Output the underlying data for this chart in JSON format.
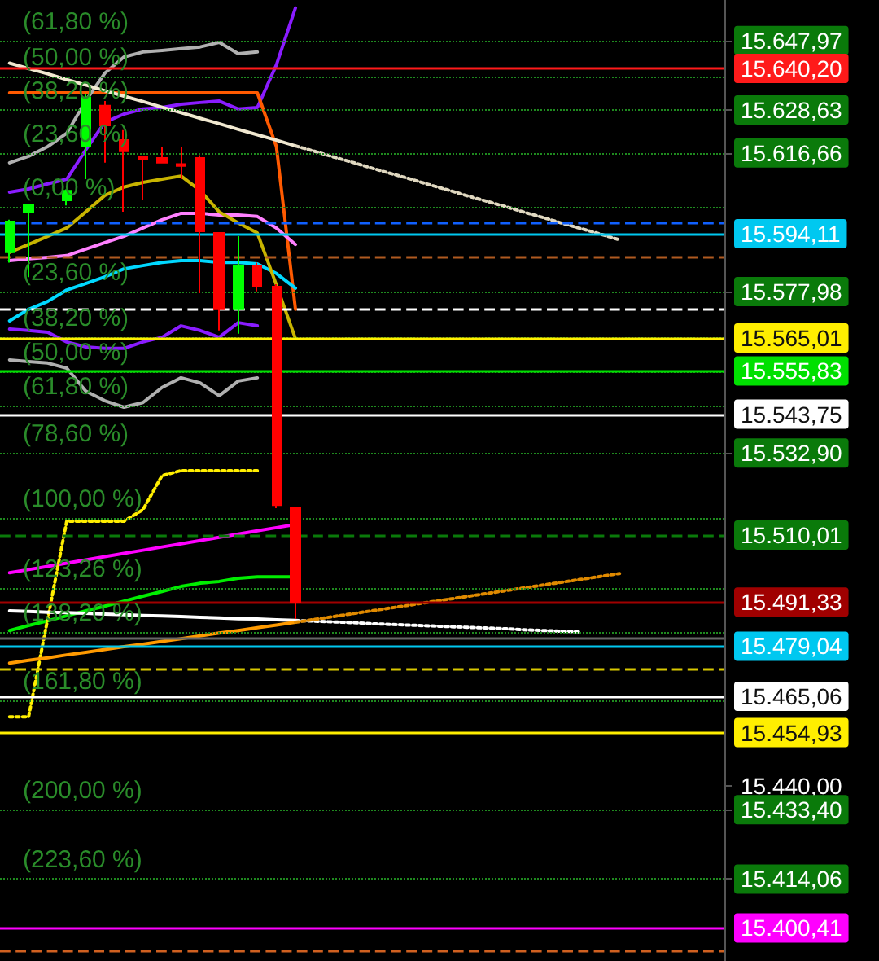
{
  "chart_data": {
    "type": "candlestick",
    "tick_labels": "y",
    "categories": [
      null,
      null,
      null,
      null,
      null,
      null,
      null,
      null,
      null,
      null,
      null,
      null,
      null,
      null,
      null,
      null,
      null,
      null,
      null,
      null,
      null,
      null,
      null,
      null,
      null,
      null,
      null,
      null,
      null,
      null,
      null,
      null,
      null,
      null,
      null,
      null,
      null,
      null
    ],
    "ohlc": [
      [
        15588.9,
        15598.0,
        15586.0,
        15597.5
      ],
      [
        15600.2,
        15602.5,
        15582.0,
        15602.1
      ],
      null,
      [
        15603.4,
        15606.5,
        15602.0,
        15606.1
      ],
      [
        15618.4,
        15633.0,
        15609.3,
        15632.1
      ],
      [
        15629.8,
        15631.1,
        15613.9,
        15624.3
      ],
      [
        15620.2,
        15623.0,
        15600.2,
        15617.1
      ],
      [
        15615.7,
        15615.7,
        15603.4,
        15614.8
      ],
      [
        15615.2,
        15618.4,
        15613.9,
        15613.9
      ],
      [
        15613.5,
        15618.4,
        15609.3,
        15613.0
      ],
      [
        15615.2,
        15616.0,
        15577.5,
        15594.8
      ],
      [
        15594.3,
        15594.3,
        15567.1,
        15573.0
      ],
      [
        15573.0,
        15593.4,
        15566.2,
        15585.2
      ],
      [
        15585.2,
        15586.0,
        15578.0,
        15579.3
      ],
      [
        15579.3,
        15580.0,
        15517.5,
        15518.4
      ],
      [
        15517.5,
        15518.0,
        15486.6,
        15491.33
      ],
      null,
      null,
      null,
      null,
      null,
      null,
      null,
      null,
      null,
      null,
      null,
      null,
      null,
      null,
      null,
      null,
      null,
      null,
      null,
      null,
      null,
      null
    ],
    "colors": [
      "#00ff00",
      "#00ff00",
      null,
      "#00ff00",
      "#00ff00",
      "#ff0000",
      "#ff0000",
      "#ff0000",
      "#ff0000",
      "#ff0000",
      "#ff0000",
      "#ff0000",
      "#00ff00",
      "#ff0000",
      "#ff0000",
      "#ff0000",
      null,
      null,
      null,
      null,
      null,
      null,
      null,
      null,
      null,
      null,
      null,
      null,
      null,
      null,
      null,
      null,
      null,
      null,
      null,
      null,
      null,
      null
    ],
    "series": [
      {
        "type": "line",
        "color": "#8a1cff",
        "line_style": "solid",
        "values": [
          15605.7,
          15606.6,
          15608.0,
          15609.3,
          15617.5,
          15625.2,
          15627.5,
          15628.9,
          15629.3,
          15630.2,
          15630.7,
          15631.1,
          15628.9,
          15629.3,
          15641.2,
          15657.1,
          null,
          null,
          null,
          null,
          null,
          null,
          null,
          null,
          null,
          null,
          null,
          null,
          null,
          null,
          null,
          null,
          null,
          null,
          null,
          null,
          null,
          null
        ]
      },
      {
        "type": "line",
        "color": "#8a1cff",
        "line_style": "solid",
        "values": [
          15567.5,
          15567.1,
          15566.6,
          15563.9,
          15562.5,
          15562.1,
          15562.1,
          15563.9,
          15565.2,
          15568.4,
          15567.1,
          15565.2,
          15569.3,
          15568.4,
          null,
          null,
          null,
          null,
          null,
          null,
          null,
          null,
          null,
          null,
          null,
          null,
          null,
          null,
          null,
          null,
          null,
          null,
          null,
          null,
          null,
          null,
          null,
          null
        ]
      },
      {
        "type": "line",
        "color": "#ff5a00",
        "line_style": "solid",
        "values": [
          15633.4,
          15633.4,
          15633.4,
          15633.4,
          15633.4,
          15633.4,
          15633.4,
          15633.4,
          15633.4,
          15633.4,
          15633.4,
          15633.4,
          15633.4,
          15633.4,
          15618.4,
          15573.0,
          null,
          null,
          null,
          null,
          null,
          null,
          null,
          null,
          null,
          null,
          null,
          null,
          null,
          null,
          null,
          null,
          null,
          null,
          null,
          null,
          null,
          null
        ]
      },
      {
        "type": "line",
        "color": "#00d8ff",
        "line_style": "solid",
        "values": [
          15569.8,
          15573.0,
          15575.2,
          15578.4,
          15580.2,
          15582.1,
          15584.3,
          15585.2,
          15586.1,
          15586.6,
          15586.6,
          15586.1,
          15586.1,
          15585.7,
          15583.0,
          15578.9,
          null,
          null,
          null,
          null,
          null,
          null,
          null,
          null,
          null,
          null,
          null,
          null,
          null,
          null,
          null,
          null,
          null,
          null,
          null,
          null,
          null,
          null
        ]
      },
      {
        "type": "line",
        "color": "#ff80ff",
        "line_style": "solid",
        "values": [
          15586.6,
          15587.1,
          15587.5,
          15588.0,
          15589.8,
          15591.6,
          15593.4,
          15595.7,
          15598.0,
          15599.8,
          15599.8,
          15599.3,
          15599.3,
          15598.9,
          15595.7,
          15591.1,
          null,
          null,
          null,
          null,
          null,
          null,
          null,
          null,
          null,
          null,
          null,
          null,
          null,
          null,
          null,
          null,
          null,
          null,
          null,
          null,
          null,
          null
        ]
      },
      {
        "type": "line",
        "color": "#b0b0b0",
        "line_style": "solid",
        "values": [
          15613.9,
          15615.7,
          15618.4,
          15622.1,
          15631.2,
          15638.9,
          15643.4,
          15644.8,
          15645.2,
          15645.7,
          15646.2,
          15647.5,
          15644.3,
          15644.8,
          null,
          null,
          null,
          null,
          null,
          null,
          null,
          null,
          null,
          null,
          null,
          null,
          null,
          null,
          null,
          null,
          null,
          null,
          null,
          null,
          null,
          null,
          null,
          null
        ]
      },
      {
        "type": "line",
        "color": "#b0b0b0",
        "line_style": "solid",
        "values": [
          15558.9,
          15558.4,
          15558.0,
          15556.6,
          15550.2,
          15547.5,
          15545.7,
          15547.0,
          15551.2,
          15553.9,
          15552.5,
          15548.9,
          15553.0,
          15553.9,
          null,
          null,
          null,
          null,
          null,
          null,
          null,
          null,
          null,
          null,
          null,
          null,
          null,
          null,
          null,
          null,
          null,
          null,
          null,
          null,
          null,
          null,
          null,
          null
        ]
      },
      {
        "type": "line",
        "color": "#c8b400",
        "line_style": "solid",
        "values": [
          15588.9,
          15591.1,
          15593.4,
          15595.7,
          15600.2,
          15604.8,
          15607.1,
          15608.4,
          15609.3,
          15610.2,
          15606.1,
          15600.2,
          15597.1,
          15594.3,
          15579.8,
          15564.8,
          null,
          null,
          null,
          null,
          null,
          null,
          null,
          null,
          null,
          null,
          null,
          null,
          null,
          null,
          null,
          null,
          null,
          null,
          null,
          null,
          null,
          null
        ]
      },
      {
        "type": "line",
        "color": "#00ee00",
        "line_style": "solid",
        "values": [
          15483.4,
          15484.8,
          15486.1,
          15487.5,
          15488.9,
          15490.2,
          15491.6,
          15493.0,
          15494.3,
          15495.7,
          15496.6,
          15497.1,
          15498.0,
          15498.4,
          15498.4,
          15498.4,
          null,
          null,
          null,
          null,
          null,
          null,
          null,
          null,
          null,
          null,
          null,
          null,
          null,
          null,
          null,
          null,
          null,
          null,
          null,
          null,
          null,
          null
        ]
      },
      {
        "type": "line",
        "color": "#ff00ff",
        "line_style": "solid",
        "values": [
          15499.5,
          15500.4,
          15501.3,
          15502.2,
          15503.1,
          15504.0,
          15504.9,
          15505.8,
          15506.7,
          15507.6,
          15508.5,
          15509.4,
          15510.3,
          15511.2,
          15512.1,
          15513.0,
          null,
          null,
          null,
          null,
          null,
          null,
          null,
          null,
          null,
          null,
          null,
          null,
          null,
          null,
          null,
          null,
          null,
          null,
          null,
          null,
          null,
          null
        ]
      },
      {
        "type": "line",
        "color": "#ffee00",
        "line_style": "dotted",
        "values": [
          15459.3,
          15459.3,
          15486.6,
          15513.9,
          15513.9,
          15513.9,
          15513.9,
          15517.1,
          15526.6,
          15528.0,
          15528.0,
          15528.0,
          15528.0,
          15528.0,
          null,
          null,
          null,
          null,
          null,
          null,
          null,
          null,
          null,
          null,
          null,
          null,
          null,
          null,
          null,
          null,
          null,
          null,
          null,
          null,
          null,
          null,
          null,
          null
        ]
      },
      {
        "type": "line",
        "color": "#f0e8d0",
        "line_style": "solid",
        "values": [
          15641.7,
          15640.2,
          15638.7,
          15637.1,
          15635.6,
          15634.0,
          15632.5,
          15631.0,
          15629.4,
          15627.9,
          15626.3,
          15624.8,
          15623.2,
          15621.7,
          15620.2,
          15618.6,
          null,
          null,
          null,
          null,
          null,
          null,
          null,
          null,
          null,
          null,
          null,
          null,
          null,
          null,
          null,
          null,
          null,
          null,
          null,
          null,
          null,
          null
        ]
      },
      {
        "type": "line",
        "color": "#e0d8c0",
        "line_style": "dotted",
        "values": [
          null,
          null,
          null,
          null,
          null,
          null,
          null,
          null,
          null,
          null,
          null,
          null,
          null,
          null,
          null,
          15618.6,
          15617.1,
          15615.5,
          15614.0,
          15612.4,
          15610.9,
          15609.4,
          15607.8,
          15606.3,
          15604.7,
          15603.2,
          15601.7,
          15600.1,
          15598.6,
          15597.0,
          15595.5,
          15594.0,
          15592.4,
          null,
          null,
          null,
          null,
          null
        ]
      },
      {
        "type": "line",
        "color": "#ffffff",
        "line_style": "solid",
        "values": [
          15488.9,
          15488.7,
          15488.5,
          15488.4,
          15488.2,
          15488.0,
          15487.8,
          15487.6,
          15487.5,
          15487.3,
          15487.1,
          15486.9,
          15486.7,
          15486.6,
          15486.4,
          15486.2,
          null,
          null,
          null,
          null,
          null,
          null,
          null,
          null,
          null,
          null,
          null,
          null,
          null,
          null,
          null,
          null,
          null,
          null,
          null,
          null,
          null,
          null
        ]
      },
      {
        "type": "line",
        "color": "#ffffff",
        "line_style": "dotted",
        "values": [
          null,
          null,
          null,
          null,
          null,
          null,
          null,
          null,
          null,
          null,
          null,
          null,
          null,
          null,
          null,
          15486.2,
          15486.0,
          15485.8,
          15485.6,
          15485.3,
          15485.1,
          15484.9,
          15484.7,
          15484.5,
          15484.3,
          15484.1,
          15483.9,
          15483.6,
          15483.4,
          15483.2,
          15483.0,
          null,
          null,
          null,
          null,
          null,
          null,
          null
        ]
      },
      {
        "type": "line",
        "color": "#ff9a00",
        "line_style": "solid",
        "values": [
          15474.3,
          15475.1,
          15475.8,
          15476.6,
          15477.3,
          15478.1,
          15478.9,
          15479.6,
          15480.4,
          15481.1,
          15481.9,
          15482.7,
          15483.4,
          15484.2,
          15484.9,
          15485.7,
          null,
          null,
          null,
          null,
          null,
          null,
          null,
          null,
          null,
          null,
          null,
          null,
          null,
          null,
          null,
          null,
          null,
          null,
          null,
          null,
          null,
          null
        ]
      },
      {
        "type": "line",
        "color": "#e08a00",
        "line_style": "dotted",
        "values": [
          null,
          null,
          null,
          null,
          null,
          null,
          null,
          null,
          null,
          null,
          null,
          null,
          null,
          null,
          null,
          15485.7,
          15486.5,
          15487.3,
          15488.1,
          15488.9,
          15489.7,
          15490.5,
          15491.3,
          15492.1,
          15492.9,
          15493.7,
          15494.5,
          15495.3,
          15496.1,
          15496.9,
          15497.7,
          15498.5,
          15499.3,
          null,
          null,
          null,
          null,
          null
        ]
      }
    ],
    "ylim": [
      15391.2,
      15659.3
    ],
    "yticks": [
      {
        "value": 15647.97,
        "label": "15.647,97"
      },
      {
        "value": 15628.63,
        "label": "15.628,63"
      },
      {
        "value": 15616.66,
        "label": "15.616,66"
      },
      {
        "value": 15577.98,
        "label": "15.577,98"
      },
      {
        "value": 15532.9,
        "label": "15.532,90"
      },
      {
        "value": 15440.0,
        "label": "15.440,00"
      },
      {
        "value": 15433.4,
        "label": "15.433,40"
      },
      {
        "value": 15414.06,
        "label": "15.414,06"
      }
    ],
    "ref_lines": [
      {
        "axis": "y",
        "value": 15647.97,
        "color": "#1f8a1f",
        "line_style": "dotted"
      },
      {
        "axis": "y",
        "value": 15637.97,
        "color": "#1f8a1f",
        "line_style": "dotted"
      },
      {
        "axis": "y",
        "value": 15628.63,
        "color": "#1f8a1f",
        "line_style": "dotted"
      },
      {
        "axis": "y",
        "value": 15616.66,
        "color": "#1f8a1f",
        "line_style": "dotted"
      },
      {
        "axis": "y",
        "value": 15601.5,
        "color": "#1f8a1f",
        "line_style": "dotted"
      },
      {
        "axis": "y",
        "value": 15577.98,
        "color": "#1f8a1f",
        "line_style": "dotted"
      },
      {
        "axis": "y",
        "value": 15565.2,
        "color": "#1f8a1f",
        "line_style": "dotted"
      },
      {
        "axis": "y",
        "value": 15555.7,
        "color": "#1f8a1f",
        "line_style": "dotted"
      },
      {
        "axis": "y",
        "value": 15546.2,
        "color": "#1f8a1f",
        "line_style": "dotted"
      },
      {
        "axis": "y",
        "value": 15532.9,
        "color": "#1f8a1f",
        "line_style": "dotted"
      },
      {
        "axis": "y",
        "value": 15514.8,
        "color": "#1f8a1f",
        "line_style": "dotted"
      },
      {
        "axis": "y",
        "value": 15495.2,
        "color": "#1f8a1f",
        "line_style": "dotted"
      },
      {
        "axis": "y",
        "value": 15483.0,
        "color": "#1f8a1f",
        "line_style": "dotted"
      },
      {
        "axis": "y",
        "value": 15463.9,
        "color": "#1f8a1f",
        "line_style": "dotted"
      },
      {
        "axis": "y",
        "value": 15433.4,
        "color": "#1f8a1f",
        "line_style": "dotted"
      },
      {
        "axis": "y",
        "value": 15414.06,
        "color": "#1f8a1f",
        "line_style": "dotted"
      },
      {
        "axis": "y",
        "value": 15640.2,
        "label": "15.640,20",
        "color": "#ff1a1a",
        "line_style": "solid"
      },
      {
        "axis": "y",
        "value": 15597.0,
        "color": "#1060ff",
        "line_style": "dashed"
      },
      {
        "axis": "y",
        "value": 15594.11,
        "label": "15.594,11",
        "color": "#00c8f0",
        "line_style": "solid"
      },
      {
        "axis": "y",
        "value": 15587.5,
        "color": "#b05a20",
        "line_style": "dashed"
      },
      {
        "axis": "y",
        "value": 15573.0,
        "color": "#ffffff",
        "line_style": "dashed"
      },
      {
        "axis": "y",
        "value": 15565.01,
        "label": "15.565,01",
        "color": "#ffee00",
        "line_style": "solid"
      },
      {
        "axis": "y",
        "value": 15555.83,
        "label": "15.555,83",
        "color": "#00e000",
        "line_style": "solid"
      },
      {
        "axis": "y",
        "value": 15543.75,
        "label": "15.543,75",
        "color": "#ffffff",
        "line_style": "solid"
      },
      {
        "axis": "y",
        "value": 15510.01,
        "label": "15.510,01",
        "color": "#0a7a0a",
        "line_style": "dashed"
      },
      {
        "axis": "y",
        "value": 15491.33,
        "label": "15.491,33",
        "color": "#a00000",
        "line_style": "solid"
      },
      {
        "axis": "y",
        "value": 15481.2,
        "color": "#666666",
        "line_style": "solid"
      },
      {
        "axis": "y",
        "value": 15479.04,
        "label": "15.479,04",
        "color": "#00c8f0",
        "line_style": "solid"
      },
      {
        "axis": "y",
        "value": 15472.5,
        "color": "#d8c800",
        "line_style": "dashed"
      },
      {
        "axis": "y",
        "value": 15465.06,
        "label": "15.465,06",
        "color": "#ffffff",
        "line_style": "solid"
      },
      {
        "axis": "y",
        "value": 15454.93,
        "label": "15.454,93",
        "color": "#ffee00",
        "line_style": "solid"
      },
      {
        "axis": "y",
        "value": 15400.41,
        "label": "15.400,41",
        "color": "#ff00ff",
        "line_style": "solid"
      },
      {
        "axis": "y",
        "value": 15393.9,
        "color": "#d06020",
        "line_style": "dashed"
      }
    ],
    "annotations": [
      {
        "text": "(61,80 %)",
        "y": 15647.97
      },
      {
        "text": "(50,00 %)",
        "y": 15637.97
      },
      {
        "text": "(38,20 %)",
        "y": 15628.63
      },
      {
        "text": "(23,60 %)",
        "y": 15616.66
      },
      {
        "text": "(0,00 %)",
        "y": 15601.5
      },
      {
        "text": "(23,60 %)",
        "y": 15577.98
      },
      {
        "text": "(38,20 %)",
        "y": 15565.2
      },
      {
        "text": "(50,00 %)",
        "y": 15555.7
      },
      {
        "text": "(61,80 %)",
        "y": 15546.2
      },
      {
        "text": "(78,60 %)",
        "y": 15532.9
      },
      {
        "text": "(100,00 %)",
        "y": 15514.8
      },
      {
        "text": "(123,26 %)",
        "y": 15495.2
      },
      {
        "text": "(138,20 %)",
        "y": 15483.0
      },
      {
        "text": "(161,80 %)",
        "y": 15463.9
      },
      {
        "text": "(200,00 %)",
        "y": 15433.4
      },
      {
        "text": "(223,60 %)",
        "y": 15414.06
      }
    ]
  }
}
